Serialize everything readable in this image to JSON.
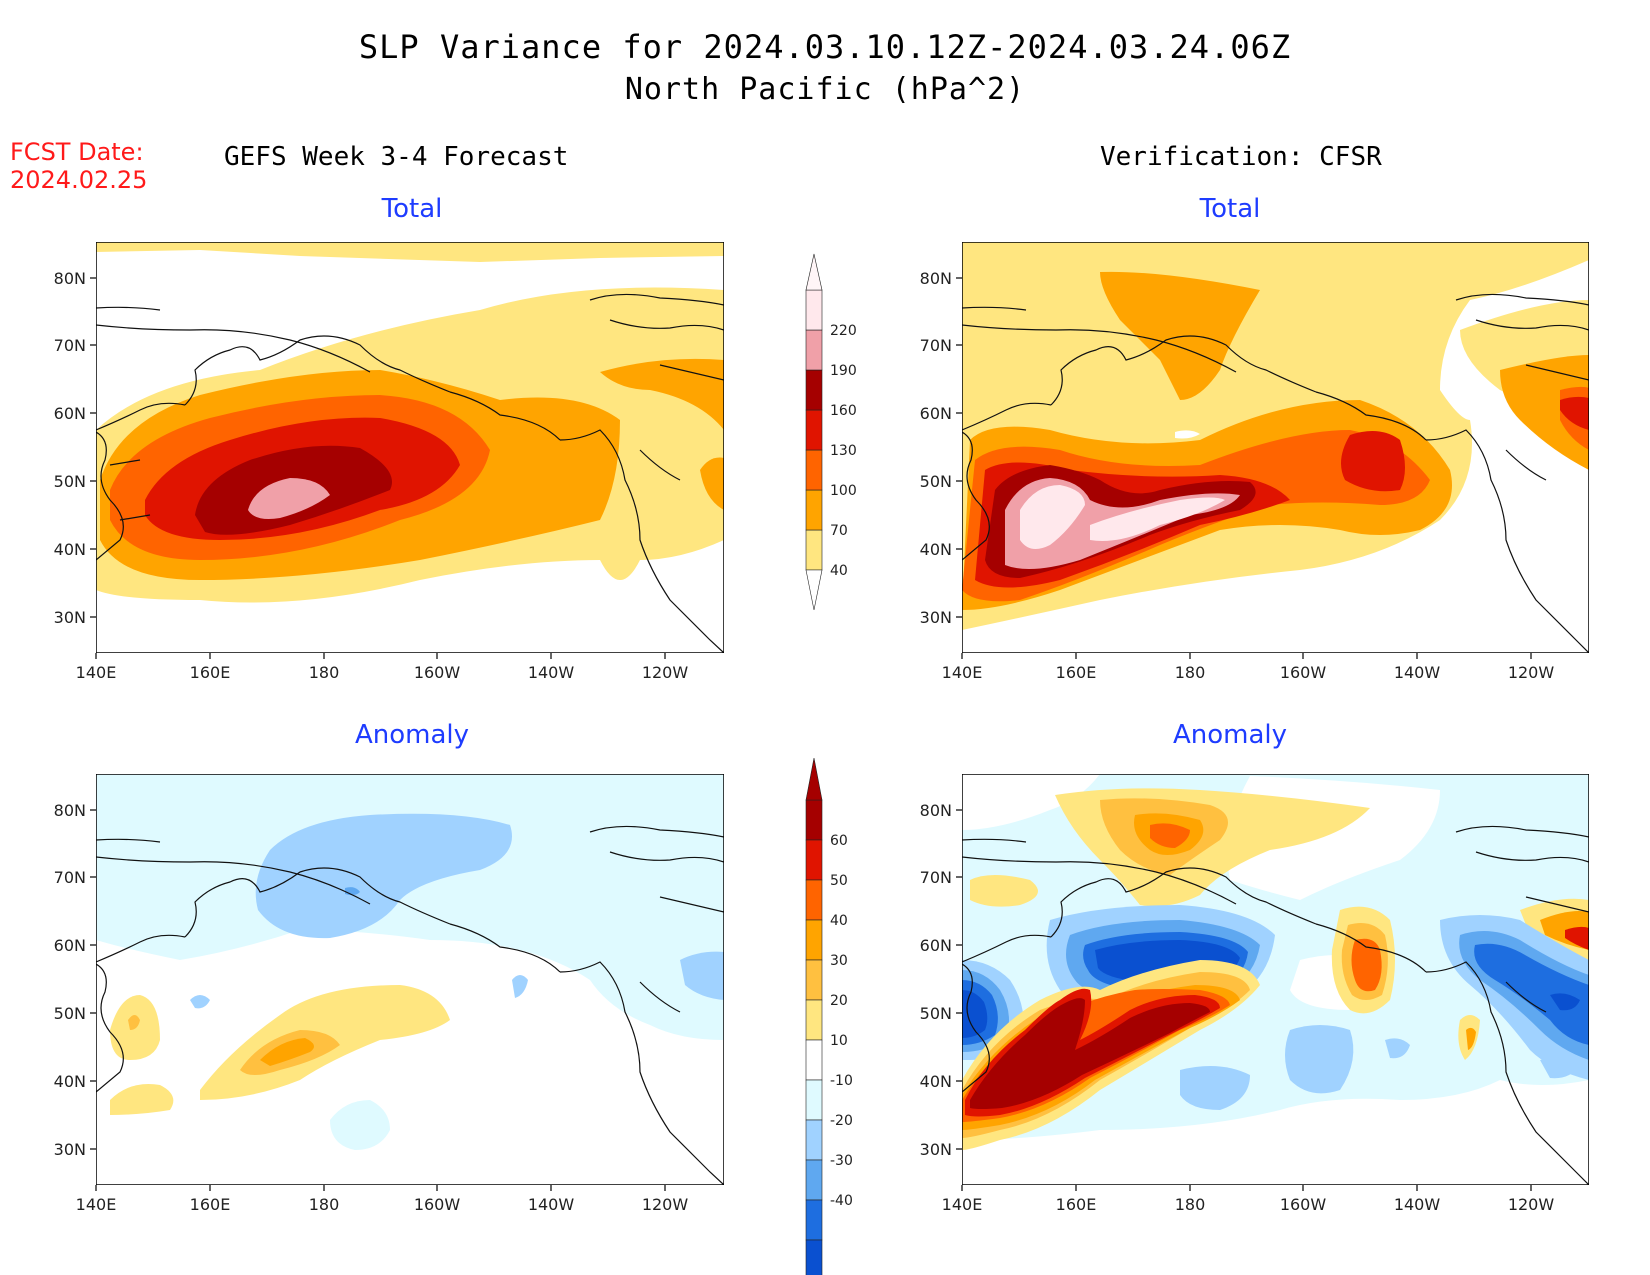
{
  "title": "SLP Variance for 2024.03.10.12Z-2024.03.24.06Z",
  "subtitle": "North Pacific (hPa^2)",
  "fcst_label": "FCST Date:",
  "fcst_date": "2024.02.25",
  "left_column_title": "GEFS Week 3-4 Forecast",
  "right_column_title": "Verification: CFSR",
  "panel_titles": {
    "top_left": "Total",
    "top_right": "Total",
    "bottom_left": "Anomaly",
    "bottom_right": "Anomaly"
  },
  "lat_ticks": [
    "80N",
    "70N",
    "60N",
    "50N",
    "40N",
    "30N"
  ],
  "lon_ticks": [
    "140E",
    "160E",
    "180",
    "160W",
    "140W",
    "120W"
  ],
  "colorbar_total": {
    "labels": [
      "40",
      "70",
      "100",
      "130",
      "160",
      "190",
      "220"
    ],
    "colors": [
      "#ffe680",
      "#ffa400",
      "#ff6400",
      "#e01400",
      "#a50000",
      "#f0a0a8",
      "#ffe8ec"
    ]
  },
  "colorbar_anomaly": {
    "labels": [
      "60",
      "50",
      "40",
      "30",
      "20",
      "10",
      "-10",
      "-20",
      "-30",
      "-40"
    ],
    "colors": [
      "#a50000",
      "#e01400",
      "#ff6400",
      "#ffa400",
      "#ffc040",
      "#ffe680",
      "#ffffff",
      "#dffaff",
      "#a0d2ff",
      "#5fa8f0",
      "#1e6ee0",
      "#0a50d0"
    ]
  }
}
